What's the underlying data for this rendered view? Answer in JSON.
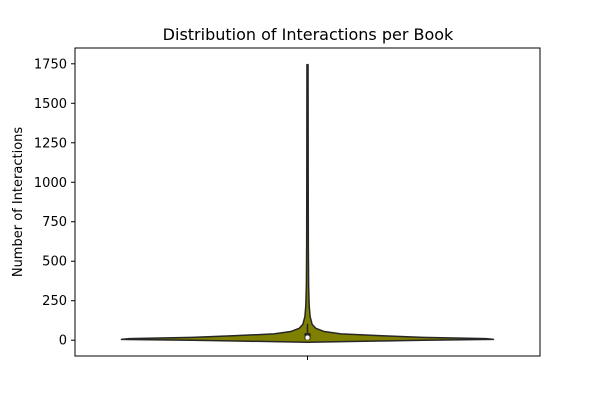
{
  "chart_data": {
    "type": "violin",
    "title": "Distribution of Interactions per Book",
    "xlabel": "",
    "ylabel": "Number of Interactions",
    "ylim": [
      -100,
      1850
    ],
    "yticks": [
      0,
      250,
      500,
      750,
      1000,
      1250,
      1500,
      1750
    ],
    "xticks": [
      ""
    ],
    "grid": false,
    "legend": "none",
    "fill_color": "#808000",
    "outline_color": "#262626",
    "series": [
      {
        "categories": [
          ""
        ],
        "min": 1,
        "max": 1745,
        "q1": 5,
        "median": 17,
        "q3": 45,
        "whisker_low": 1,
        "whisker_high": 104,
        "density_profile": [
          {
            "y": -13,
            "half_width": 0.0
          },
          {
            "y": -5,
            "half_width": 0.38
          },
          {
            "y": 0,
            "half_width": 0.62
          },
          {
            "y": 5,
            "half_width": 1.0
          },
          {
            "y": 10,
            "half_width": 0.96
          },
          {
            "y": 18,
            "half_width": 0.62
          },
          {
            "y": 28,
            "half_width": 0.4
          },
          {
            "y": 40,
            "half_width": 0.18
          },
          {
            "y": 55,
            "half_width": 0.09
          },
          {
            "y": 75,
            "half_width": 0.045
          },
          {
            "y": 100,
            "half_width": 0.025
          },
          {
            "y": 150,
            "half_width": 0.014
          },
          {
            "y": 220,
            "half_width": 0.009
          },
          {
            "y": 350,
            "half_width": 0.006
          },
          {
            "y": 600,
            "half_width": 0.0045
          },
          {
            "y": 1000,
            "half_width": 0.0038
          },
          {
            "y": 1400,
            "half_width": 0.0034
          },
          {
            "y": 1745,
            "half_width": 0.003
          }
        ]
      }
    ]
  }
}
